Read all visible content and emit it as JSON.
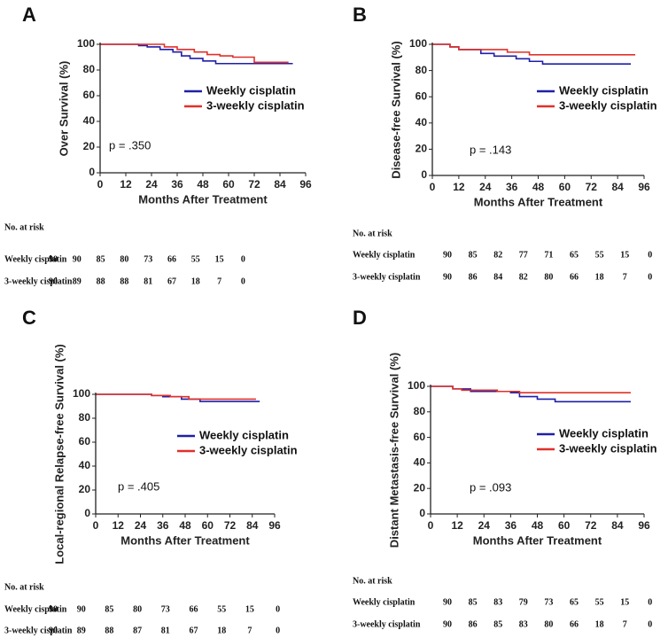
{
  "chart_data": [
    {
      "type": "line",
      "panel": "A",
      "y_label": "Over Survival (%)",
      "x_label": "Months After Treatment",
      "xlim": [
        0,
        96
      ],
      "xticks": [
        0,
        12,
        24,
        36,
        48,
        60,
        72,
        84,
        96
      ],
      "ylim": [
        0,
        100
      ],
      "yticks": [
        0,
        20,
        40,
        60,
        80,
        100
      ],
      "series": [
        {
          "name": "Weekly cisplatin",
          "color": "#1f1fa8",
          "x": [
            0,
            18,
            22,
            28,
            34,
            38,
            42,
            48,
            54,
            90
          ],
          "values": [
            100,
            99,
            98,
            96,
            94,
            91,
            89,
            87,
            85,
            85
          ]
        },
        {
          "name": "3-weekly cisplatin",
          "color": "#e0302a",
          "x": [
            0,
            30,
            36,
            44,
            50,
            56,
            62,
            72,
            88
          ],
          "values": [
            100,
            98,
            96,
            94,
            92,
            91,
            90,
            86,
            86
          ]
        }
      ],
      "annotation": "p = .350",
      "risk_table": {
        "title": "No. at risk",
        "rows": [
          {
            "name": "Weekly cisplatin",
            "values": [
              90,
              90,
              85,
              80,
              73,
              66,
              55,
              15,
              0
            ]
          },
          {
            "name": "3-weekly cisplatin",
            "values": [
              90,
              89,
              88,
              88,
              81,
              67,
              18,
              7,
              0
            ]
          }
        ]
      }
    },
    {
      "type": "line",
      "panel": "B",
      "y_label": "Disease-free Survival (%)",
      "x_label": "Months After Treatment",
      "xlim": [
        0,
        96
      ],
      "xticks": [
        0,
        12,
        24,
        36,
        48,
        60,
        72,
        84,
        96
      ],
      "ylim": [
        0,
        100
      ],
      "yticks": [
        0,
        20,
        40,
        60,
        80,
        100
      ],
      "series": [
        {
          "name": "Weekly cisplatin",
          "color": "#1f1fa8",
          "x": [
            0,
            8,
            12,
            22,
            28,
            38,
            44,
            50,
            90
          ],
          "values": [
            100,
            98,
            96,
            93,
            91,
            89,
            87,
            85,
            85
          ]
        },
        {
          "name": "3-weekly cisplatin",
          "color": "#e0302a",
          "x": [
            0,
            8,
            12,
            34,
            44,
            92
          ],
          "values": [
            100,
            98,
            96,
            94,
            92,
            92
          ]
        }
      ],
      "annotation": "p = .143",
      "risk_table": {
        "title": "No. at risk",
        "rows": [
          {
            "name": "Weekly cisplatin",
            "values": [
              90,
              85,
              82,
              77,
              71,
              65,
              55,
              15,
              0
            ]
          },
          {
            "name": "3-weekly cisplatin",
            "values": [
              90,
              86,
              84,
              82,
              80,
              66,
              18,
              7,
              0
            ]
          }
        ]
      }
    },
    {
      "type": "line",
      "panel": "C",
      "y_label": "Local-regional Relapse-free Survival (%)",
      "x_label": "Months After Treatment",
      "xlim": [
        0,
        96
      ],
      "xticks": [
        0,
        12,
        24,
        36,
        48,
        60,
        72,
        84,
        96
      ],
      "ylim": [
        0,
        100
      ],
      "yticks": [
        0,
        20,
        40,
        60,
        80,
        100
      ],
      "series": [
        {
          "name": "Weekly cisplatin",
          "color": "#1f1fa8",
          "x": [
            0,
            30,
            36,
            46,
            56,
            88
          ],
          "values": [
            100,
            99,
            98,
            96,
            94,
            94
          ]
        },
        {
          "name": "3-weekly cisplatin",
          "color": "#e0302a",
          "x": [
            0,
            30,
            40,
            50,
            86
          ],
          "values": [
            100,
            99,
            98,
            96,
            96
          ]
        }
      ],
      "annotation": "p = .405",
      "risk_table": {
        "title": "No. at risk",
        "rows": [
          {
            "name": "Weekly cisplatin",
            "values": [
              90,
              90,
              85,
              80,
              73,
              66,
              55,
              15,
              0
            ]
          },
          {
            "name": "3-weekly cisplatin",
            "values": [
              90,
              89,
              88,
              87,
              81,
              67,
              18,
              7,
              0
            ]
          }
        ]
      }
    },
    {
      "type": "line",
      "panel": "D",
      "y_label": "Distant Metastasis-free Survival (%)",
      "x_label": "Months After Treatment",
      "xlim": [
        0,
        96
      ],
      "xticks": [
        0,
        12,
        24,
        36,
        48,
        60,
        72,
        84,
        96
      ],
      "ylim": [
        0,
        100
      ],
      "yticks": [
        0,
        20,
        40,
        60,
        80,
        100
      ],
      "series": [
        {
          "name": "Weekly cisplatin",
          "color": "#1f1fa8",
          "x": [
            0,
            10,
            18,
            36,
            40,
            48,
            56,
            90
          ],
          "values": [
            100,
            98,
            96,
            95,
            92,
            90,
            88,
            88
          ]
        },
        {
          "name": "3-weekly cisplatin",
          "color": "#e0302a",
          "x": [
            0,
            10,
            14,
            30,
            40,
            90
          ],
          "values": [
            100,
            98,
            97,
            96,
            95,
            95
          ]
        }
      ],
      "annotation": "p = .093",
      "risk_table": {
        "title": "No. at risk",
        "rows": [
          {
            "name": "Weekly cisplatin",
            "values": [
              90,
              85,
              83,
              79,
              73,
              65,
              55,
              15,
              0
            ]
          },
          {
            "name": "3-weekly cisplatin",
            "values": [
              90,
              86,
              85,
              83,
              80,
              66,
              18,
              7,
              0
            ]
          }
        ]
      }
    }
  ]
}
